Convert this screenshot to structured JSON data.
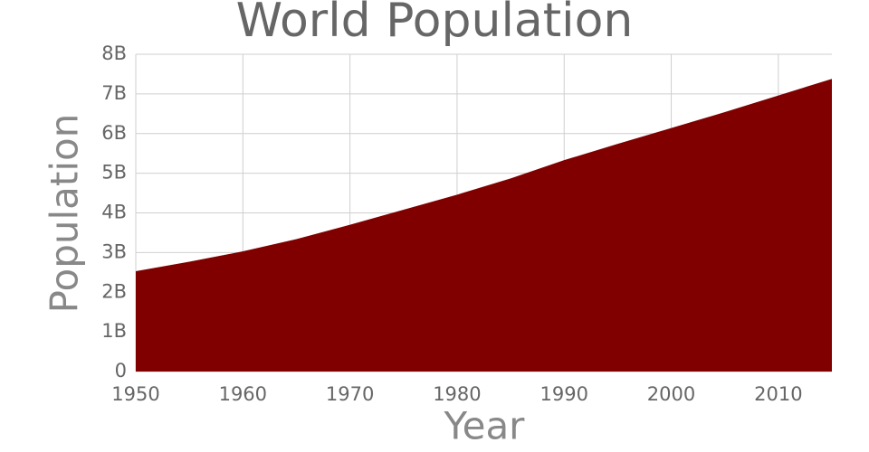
{
  "chart_data": {
    "type": "area",
    "title": "World Population",
    "x_label": "Year",
    "y_label": "Population",
    "x": [
      1950,
      1955,
      1960,
      1965,
      1970,
      1975,
      1980,
      1985,
      1990,
      1995,
      2000,
      2005,
      2010,
      2015
    ],
    "series": [
      {
        "name": "Population",
        "color": "#800000",
        "values": [
          2530000000,
          2770000000,
          3030000000,
          3340000000,
          3700000000,
          4080000000,
          4460000000,
          4870000000,
          5330000000,
          5740000000,
          6140000000,
          6540000000,
          6960000000,
          7380000000
        ]
      }
    ],
    "xlim": [
      1950,
      2015
    ],
    "xticks": [
      1950,
      1960,
      1970,
      1980,
      1990,
      2000,
      2010
    ],
    "ylim": [
      0,
      8000000000
    ],
    "yticks": [
      0,
      {
        "value": 1000000000,
        "label": "1B"
      },
      {
        "value": 2000000000,
        "label": "2B"
      },
      {
        "value": 3000000000,
        "label": "3B"
      },
      {
        "value": 4000000000,
        "label": "4B"
      },
      {
        "value": 5000000000,
        "label": "5B"
      },
      {
        "value": 6000000000,
        "label": "6B"
      },
      {
        "value": 7000000000,
        "label": "7B"
      },
      {
        "value": 8000000000,
        "label": "8B"
      }
    ],
    "grid": true
  }
}
